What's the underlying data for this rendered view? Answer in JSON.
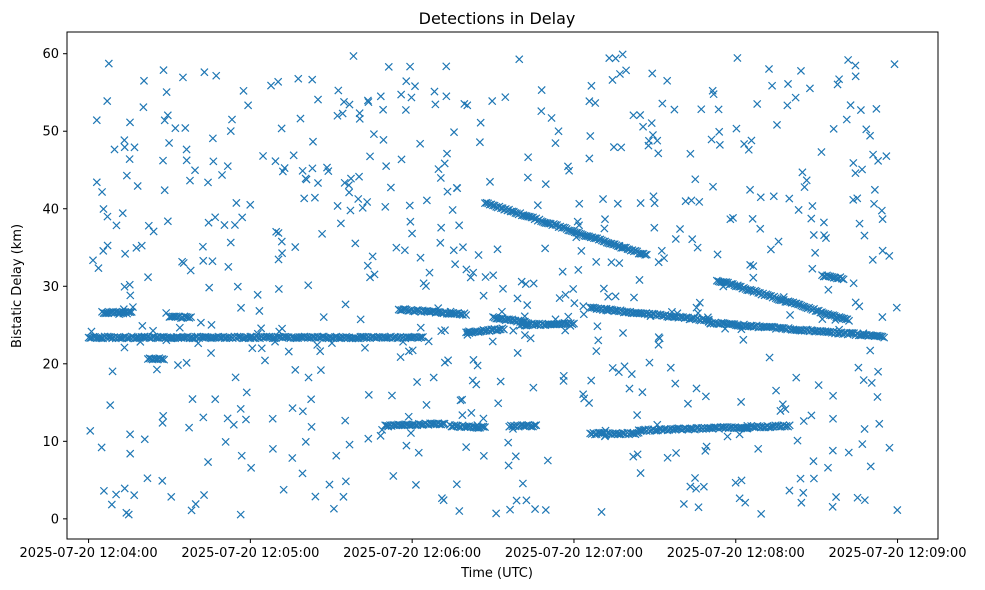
{
  "chart_data": {
    "type": "scatter",
    "title": "Detections in Delay",
    "xlabel": "Time (UTC)",
    "ylabel": "Bistatic Delay (km)",
    "x_unit": "time",
    "xlim": [
      "2025-07-20 12:03:52",
      "2025-07-20 12:09:15"
    ],
    "ylim": [
      -2.6,
      62.8
    ],
    "x_ticks": [
      {
        "value": "2025-07-20 12:04:00",
        "label": "2025-07-20 12:04:00"
      },
      {
        "value": "2025-07-20 12:05:00",
        "label": "2025-07-20 12:05:00"
      },
      {
        "value": "2025-07-20 12:06:00",
        "label": "2025-07-20 12:06:00"
      },
      {
        "value": "2025-07-20 12:07:00",
        "label": "2025-07-20 12:07:00"
      },
      {
        "value": "2025-07-20 12:08:00",
        "label": "2025-07-20 12:08:00"
      },
      {
        "value": "2025-07-20 12:09:00",
        "label": "2025-07-20 12:09:00"
      }
    ],
    "y_ticks": [
      {
        "value": 0,
        "label": "0"
      },
      {
        "value": 10,
        "label": "10"
      },
      {
        "value": 20,
        "label": "20"
      },
      {
        "value": 30,
        "label": "30"
      },
      {
        "value": 40,
        "label": "40"
      },
      {
        "value": 50,
        "label": "50"
      },
      {
        "value": 60,
        "label": "60"
      }
    ],
    "grid": false,
    "marker": "x",
    "color": "#1f77b4",
    "tracks": [
      {
        "x": [
          "2025-07-20 12:04:00",
          "2025-07-20 12:05:00",
          "2025-07-20 12:05:42"
        ],
        "y": [
          23.4,
          23.4,
          23.4
        ]
      },
      {
        "x": [
          "2025-07-20 12:04:05",
          "2025-07-20 12:04:16"
        ],
        "y": [
          26.6,
          26.6
        ]
      },
      {
        "x": [
          "2025-07-20 12:04:22",
          "2025-07-20 12:04:28"
        ],
        "y": [
          20.6,
          20.6
        ]
      },
      {
        "x": [
          "2025-07-20 12:04:30",
          "2025-07-20 12:04:38"
        ],
        "y": [
          26.0,
          26.0
        ]
      },
      {
        "x": [
          "2025-07-20 12:05:42",
          "2025-07-20 12:06:04"
        ],
        "y": [
          23.4,
          23.4
        ]
      },
      {
        "x": [
          "2025-07-20 12:05:55",
          "2025-07-20 12:06:20"
        ],
        "y": [
          27.0,
          26.4
        ]
      },
      {
        "x": [
          "2025-07-20 12:06:20",
          "2025-07-20 12:06:34"
        ],
        "y": [
          24.0,
          24.5
        ]
      },
      {
        "x": [
          "2025-07-20 12:06:30",
          "2025-07-20 12:06:43"
        ],
        "y": [
          26.0,
          25.3
        ]
      },
      {
        "x": [
          "2025-07-20 12:06:40",
          "2025-07-20 12:07:00"
        ],
        "y": [
          25.0,
          25.2
        ]
      },
      {
        "x": [
          "2025-07-20 12:05:50",
          "2025-07-20 12:06:12"
        ],
        "y": [
          12.0,
          12.3
        ]
      },
      {
        "x": [
          "2025-07-20 12:06:14",
          "2025-07-20 12:06:27"
        ],
        "y": [
          12.0,
          11.8
        ]
      },
      {
        "x": [
          "2025-07-20 12:06:36",
          "2025-07-20 12:06:46"
        ],
        "y": [
          12.0,
          12.0
        ]
      },
      {
        "x": [
          "2025-07-20 12:07:06",
          "2025-07-20 12:07:24"
        ],
        "y": [
          11.0,
          11.0
        ]
      },
      {
        "x": [
          "2025-07-20 12:07:24",
          "2025-07-20 12:08:20"
        ],
        "y": [
          11.4,
          12.0
        ]
      },
      {
        "x": [
          "2025-07-20 12:06:27",
          "2025-07-20 12:07:27"
        ],
        "y": [
          40.8,
          34.0
        ]
      },
      {
        "x": [
          "2025-07-20 12:07:06",
          "2025-07-20 12:07:50"
        ],
        "y": [
          27.2,
          25.6
        ]
      },
      {
        "x": [
          "2025-07-20 12:07:50",
          "2025-07-20 12:08:38"
        ],
        "y": [
          25.3,
          24.0
        ]
      },
      {
        "x": [
          "2025-07-20 12:07:53",
          "2025-07-20 12:08:42"
        ],
        "y": [
          30.8,
          25.6
        ]
      },
      {
        "x": [
          "2025-07-20 12:08:32",
          "2025-07-20 12:08:40"
        ],
        "y": [
          31.4,
          31.0
        ]
      },
      {
        "x": [
          "2025-07-20 12:08:38",
          "2025-07-20 12:08:55"
        ],
        "y": [
          24.0,
          23.5
        ]
      }
    ],
    "background_noise": {
      "count": 650,
      "x_range": [
        "2025-07-20 12:04:00",
        "2025-07-20 12:09:00"
      ],
      "y_range": [
        0.5,
        60
      ]
    }
  }
}
